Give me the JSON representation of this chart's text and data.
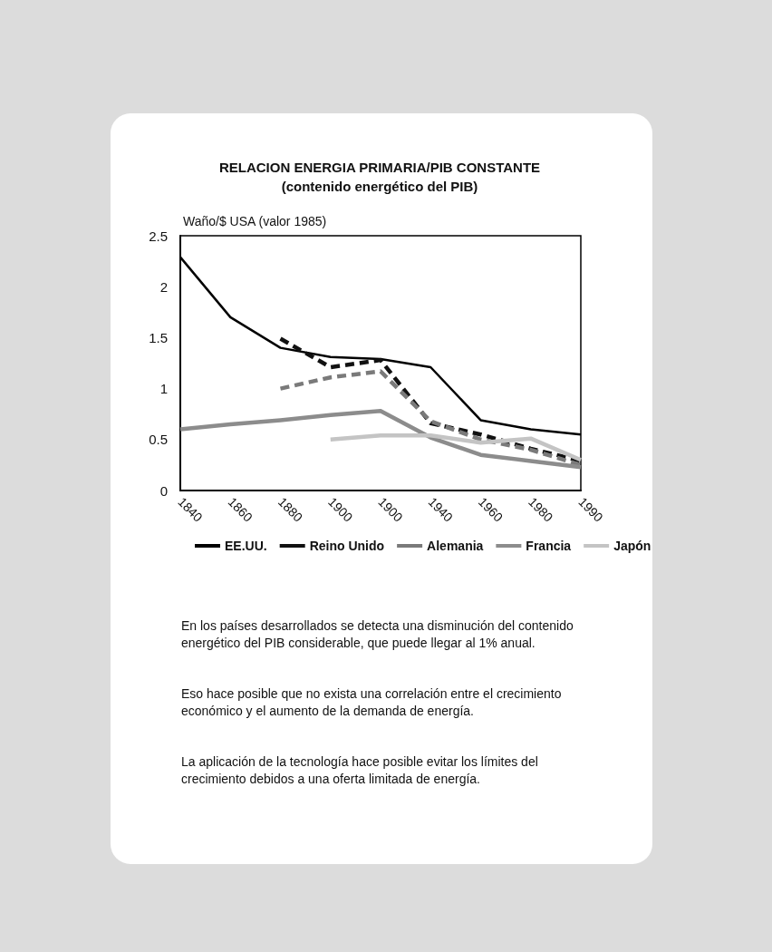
{
  "chart_data": {
    "type": "line",
    "title": "RELACION ENERGIA PRIMARIA/PIB CONSTANTE",
    "subtitle": "(contenido energético del PIB)",
    "ylabel": "Waño/$ USA (valor 1985)",
    "categories": [
      "1840",
      "1860",
      "1880",
      "1900",
      "1900",
      "1940",
      "1960",
      "1980",
      "1990"
    ],
    "series": [
      {
        "name": "EE.UU.",
        "color": "#000000",
        "line_style": "solid",
        "values": [
          2.29,
          1.7,
          1.4,
          1.31,
          1.29,
          1.21,
          0.69,
          0.6,
          0.55
        ]
      },
      {
        "name": "Reino Unido",
        "color": "#111111",
        "line_style": "dashed",
        "values": [
          null,
          null,
          1.49,
          1.21,
          1.28,
          0.66,
          0.55,
          0.41,
          0.29
        ]
      },
      {
        "name": "Alemania",
        "color": "#7a7a7a",
        "line_style": "dashed",
        "values": [
          null,
          null,
          1.0,
          1.11,
          1.17,
          0.68,
          0.5,
          0.4,
          0.25
        ]
      },
      {
        "name": "Francia",
        "color": "#8c8c8c",
        "line_style": "solid",
        "values": [
          0.6,
          0.65,
          0.69,
          0.74,
          0.78,
          0.52,
          0.35,
          0.29,
          0.23
        ]
      },
      {
        "name": "Japón",
        "color": "#c4c4c4",
        "line_style": "solid",
        "values": [
          null,
          null,
          null,
          0.5,
          0.54,
          0.54,
          0.47,
          0.51,
          0.3
        ]
      }
    ],
    "ylim": [
      0,
      2.5
    ],
    "yticks": [
      0,
      0.5,
      1,
      1.5,
      2,
      2.5
    ],
    "grid": false,
    "legend": "bottom",
    "marker": "none",
    "annotations": [
      "En los países desarrollados se detecta una disminución del contenido energético del PIB considerable, que puede llegar al 1% anual.",
      "Eso hace posible que no exista una correlación entre el crecimiento económico y el aumento de la demanda de energía.",
      "La aplicación de la tecnología hace posible evitar los límites del crecimiento debidos a una oferta limitada de energía."
    ]
  }
}
